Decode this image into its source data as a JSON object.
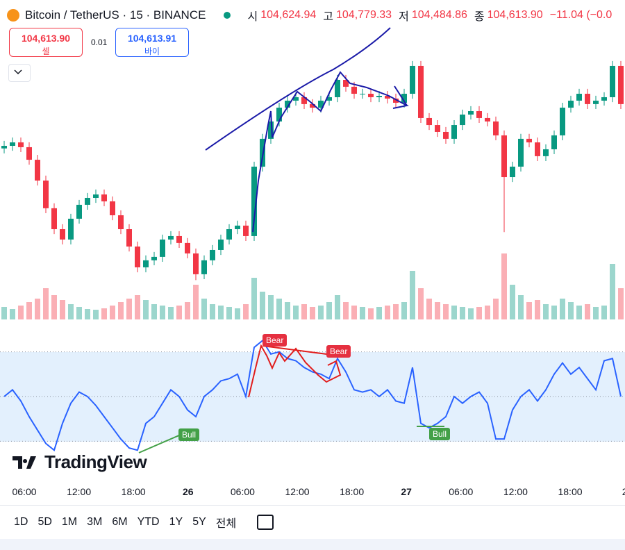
{
  "header": {
    "symbol": "Bitcoin / TetherUS · 15 · BINANCE",
    "ohlc": [
      {
        "label": "시",
        "value": "104,624.94"
      },
      {
        "label": "고",
        "value": "104,779.33"
      },
      {
        "label": "저",
        "value": "104,484.86"
      },
      {
        "label": "종",
        "value": "104,613.90"
      }
    ],
    "change": "−11.04 (−0.0"
  },
  "trade": {
    "sell_price": "104,613.90",
    "sell_label": "셀",
    "spread": "0.01",
    "buy_price": "104,613.91",
    "buy_label": "바이"
  },
  "chart_data": {
    "type": "candlestick",
    "up_color": "#089981",
    "down_color": "#f23645",
    "ylim": [
      103000,
      105200
    ],
    "open": [
      104220,
      104241,
      104269,
      104230,
      104128,
      103959,
      103734,
      103564,
      103480,
      103649,
      103762,
      103818,
      103846,
      103790,
      103677,
      103564,
      103423,
      103254,
      103311,
      103339,
      103480,
      103508,
      103452,
      103367,
      103198,
      103311,
      103395,
      103480,
      103564,
      103593,
      103508,
      104072,
      104298,
      104439,
      104551,
      104608,
      104636,
      104580,
      104551,
      104608,
      104636,
      104777,
      104721,
      104664,
      104664,
      104636,
      104647,
      104625,
      104591,
      104664,
      104890,
      104467,
      104410,
      104354,
      104298,
      104410,
      104495,
      104523,
      104467,
      104439,
      104326,
      103987,
      104072,
      104298,
      104269,
      104157,
      104213,
      104326,
      104551,
      104608,
      104664,
      104580,
      104608,
      104636,
      104890
    ],
    "high": [
      104281,
      104309,
      104309,
      104270,
      104168,
      103999,
      103774,
      103604,
      103689,
      103802,
      103858,
      103886,
      103886,
      103830,
      103717,
      103604,
      103463,
      103351,
      103379,
      103520,
      103548,
      103548,
      103492,
      103407,
      103351,
      103435,
      103520,
      103604,
      103633,
      103633,
      104112,
      104338,
      104479,
      104591,
      104648,
      104676,
      104676,
      104620,
      104648,
      104676,
      104817,
      104817,
      104761,
      104704,
      104704,
      104687,
      104687,
      104665,
      104704,
      104930,
      104930,
      104507,
      104450,
      104394,
      104450,
      104535,
      104563,
      104563,
      104507,
      104479,
      104366,
      104112,
      104338,
      104338,
      104309,
      104253,
      104366,
      104591,
      104648,
      104704,
      104704,
      104648,
      104676,
      104930,
      104930
    ],
    "low": [
      104180,
      104201,
      104190,
      104088,
      103919,
      103694,
      103524,
      103440,
      103440,
      103609,
      103722,
      103778,
      103750,
      103637,
      103524,
      103383,
      103214,
      103214,
      103271,
      103299,
      103440,
      103412,
      103327,
      103150,
      103158,
      103271,
      103355,
      103440,
      103524,
      103468,
      103468,
      104032,
      104258,
      104399,
      104511,
      104568,
      104540,
      104511,
      104511,
      104568,
      104596,
      104681,
      104624,
      104624,
      104596,
      104596,
      104585,
      104551,
      104551,
      104624,
      104427,
      104370,
      104314,
      104258,
      104258,
      104370,
      104455,
      104427,
      104399,
      104286,
      103540,
      103947,
      104032,
      104229,
      104117,
      104117,
      104173,
      104286,
      104511,
      104568,
      104540,
      104540,
      104568,
      104596,
      104540
    ],
    "close": [
      104241,
      104269,
      104230,
      104128,
      103959,
      103734,
      103564,
      103480,
      103649,
      103762,
      103818,
      103846,
      103790,
      103677,
      103564,
      103423,
      103254,
      103311,
      103339,
      103480,
      103508,
      103452,
      103367,
      103198,
      103311,
      103395,
      103480,
      103564,
      103593,
      103508,
      104072,
      104298,
      104439,
      104551,
      104608,
      104636,
      104580,
      104551,
      104608,
      104636,
      104777,
      104721,
      104664,
      104664,
      104636,
      104647,
      104625,
      104591,
      104664,
      104890,
      104467,
      104410,
      104354,
      104298,
      104410,
      104495,
      104523,
      104467,
      104439,
      104326,
      103987,
      104072,
      104298,
      104269,
      104157,
      104213,
      104326,
      104551,
      104608,
      104664,
      104580,
      104608,
      104636,
      104890,
      104580
    ],
    "volume": {
      "ylim": [
        0,
        100
      ],
      "values": [
        18,
        15,
        20,
        25,
        30,
        45,
        35,
        28,
        22,
        18,
        15,
        14,
        16,
        20,
        25,
        30,
        35,
        28,
        22,
        20,
        18,
        20,
        25,
        50,
        30,
        22,
        20,
        18,
        16,
        22,
        60,
        40,
        35,
        30,
        25,
        20,
        22,
        18,
        20,
        25,
        35,
        25,
        20,
        18,
        16,
        18,
        20,
        22,
        25,
        70,
        45,
        30,
        25,
        22,
        20,
        18,
        16,
        18,
        20,
        30,
        95,
        50,
        35,
        25,
        28,
        22,
        20,
        30,
        25,
        20,
        22,
        18,
        20,
        80,
        45
      ]
    },
    "rsi": {
      "ylim": [
        0,
        100
      ],
      "levels": [
        30,
        50,
        70
      ],
      "color": "#2962ff",
      "values": [
        50,
        53,
        48,
        41,
        35,
        29,
        26,
        38,
        47,
        52,
        50,
        46,
        41,
        36,
        31,
        27,
        26,
        38,
        41,
        47,
        53,
        50,
        44,
        41,
        50,
        53,
        57,
        58,
        60,
        50,
        72,
        75,
        69,
        70,
        67,
        66,
        63,
        61,
        60,
        58,
        67,
        61,
        53,
        52,
        53,
        50,
        53,
        48,
        47,
        63,
        38,
        36,
        38,
        41,
        50,
        47,
        50,
        52,
        47,
        31,
        31,
        44,
        50,
        53,
        48,
        53,
        60,
        65,
        60,
        63,
        58,
        53,
        66,
        67,
        50
      ],
      "signals": [
        "Bull",
        "Bear",
        "Bear",
        "Bull"
      ]
    }
  },
  "time_axis": [
    "06:00",
    "12:00",
    "18:00",
    "26",
    "06:00",
    "12:00",
    "18:00",
    "27",
    "06:00",
    "12:00",
    "18:00",
    "2"
  ],
  "ranges": [
    "1D",
    "5D",
    "1M",
    "3M",
    "6M",
    "YTD",
    "1Y",
    "5Y",
    "전체"
  ],
  "logo": "TradingView"
}
